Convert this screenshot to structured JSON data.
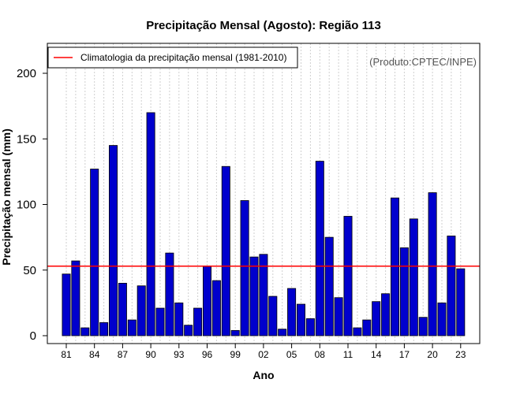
{
  "chart_data": {
    "type": "bar",
    "title": "Precipitação Mensal (Agosto): Região 113",
    "xlabel": "Ano",
    "ylabel": "Precipitação mensal (mm)",
    "credit": "(Produto:CPTEC/INPE)",
    "ylim": [
      0,
      220
    ],
    "yticks": [
      0,
      50,
      100,
      150,
      200
    ],
    "categories": [
      "81",
      "82",
      "83",
      "84",
      "85",
      "86",
      "87",
      "88",
      "89",
      "90",
      "91",
      "92",
      "93",
      "94",
      "95",
      "96",
      "97",
      "98",
      "99",
      "00",
      "01",
      "02",
      "03",
      "04",
      "05",
      "06",
      "07",
      "08",
      "09",
      "10",
      "11",
      "12",
      "13",
      "14",
      "15",
      "16",
      "17",
      "18",
      "19",
      "20",
      "21",
      "22",
      "23"
    ],
    "xtick_labels": [
      "81",
      "84",
      "87",
      "90",
      "93",
      "96",
      "99",
      "02",
      "05",
      "08",
      "11",
      "14",
      "17",
      "20",
      "23"
    ],
    "series": [
      {
        "name": "Precipitação mensal",
        "color": "#0000cd",
        "values": [
          47,
          57,
          6,
          127,
          10,
          145,
          40,
          12,
          38,
          170,
          21,
          63,
          25,
          8,
          21,
          53,
          42,
          129,
          4,
          103,
          60,
          62,
          30,
          5,
          36,
          24,
          13,
          133,
          75,
          29,
          91,
          6,
          12,
          26,
          32,
          105,
          67,
          89,
          14,
          109,
          25,
          76,
          51
        ]
      }
    ],
    "reference_line": {
      "label": "Climatologia da precipitação mensal (1981-2010)",
      "value": 53,
      "color": "#ff0000"
    },
    "legend_position": "top-left"
  }
}
